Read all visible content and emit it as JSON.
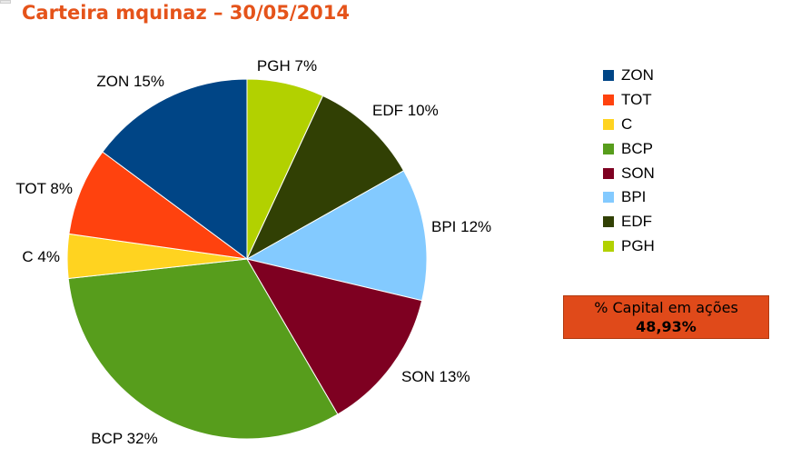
{
  "chart_data": {
    "type": "pie",
    "title": "Carteira mquinaz – 30/05/2014",
    "slices": [
      {
        "name": "PGH",
        "value": 7,
        "label": "PGH 7%",
        "color": "#b2d100"
      },
      {
        "name": "EDF",
        "value": 10,
        "label": "EDF 10%",
        "color": "#314004"
      },
      {
        "name": "BPI",
        "value": 12,
        "label": "BPI 12%",
        "color": "#83caff"
      },
      {
        "name": "SON",
        "value": 13,
        "label": "SON 13%",
        "color": "#7e0021"
      },
      {
        "name": "BCP",
        "value": 32,
        "label": "BCP 32%",
        "color": "#579d1c"
      },
      {
        "name": "C",
        "value": 4,
        "label": "C 4%",
        "color": "#ffd320"
      },
      {
        "name": "TOT",
        "value": 8,
        "label": "TOT 8%",
        "color": "#ff420e"
      },
      {
        "name": "ZON",
        "value": 15,
        "label": "ZON 15%",
        "color": "#004586"
      }
    ],
    "legend": {
      "position": "right",
      "entries": [
        {
          "name": "ZON",
          "color": "#004586"
        },
        {
          "name": "TOT",
          "color": "#ff420e"
        },
        {
          "name": "C",
          "color": "#ffd320"
        },
        {
          "name": "BCP",
          "color": "#579d1c"
        },
        {
          "name": "SON",
          "color": "#7e0021"
        },
        {
          "name": "BPI",
          "color": "#83caff"
        },
        {
          "name": "EDF",
          "color": "#314004"
        },
        {
          "name": "PGH",
          "color": "#b2d100"
        }
      ]
    }
  },
  "capital_box": {
    "title": "% Capital em ações",
    "value": "48,93%",
    "color": "#e04a1a"
  },
  "colors": {
    "title": "#e5531a",
    "slice_border": "#ffffff"
  }
}
